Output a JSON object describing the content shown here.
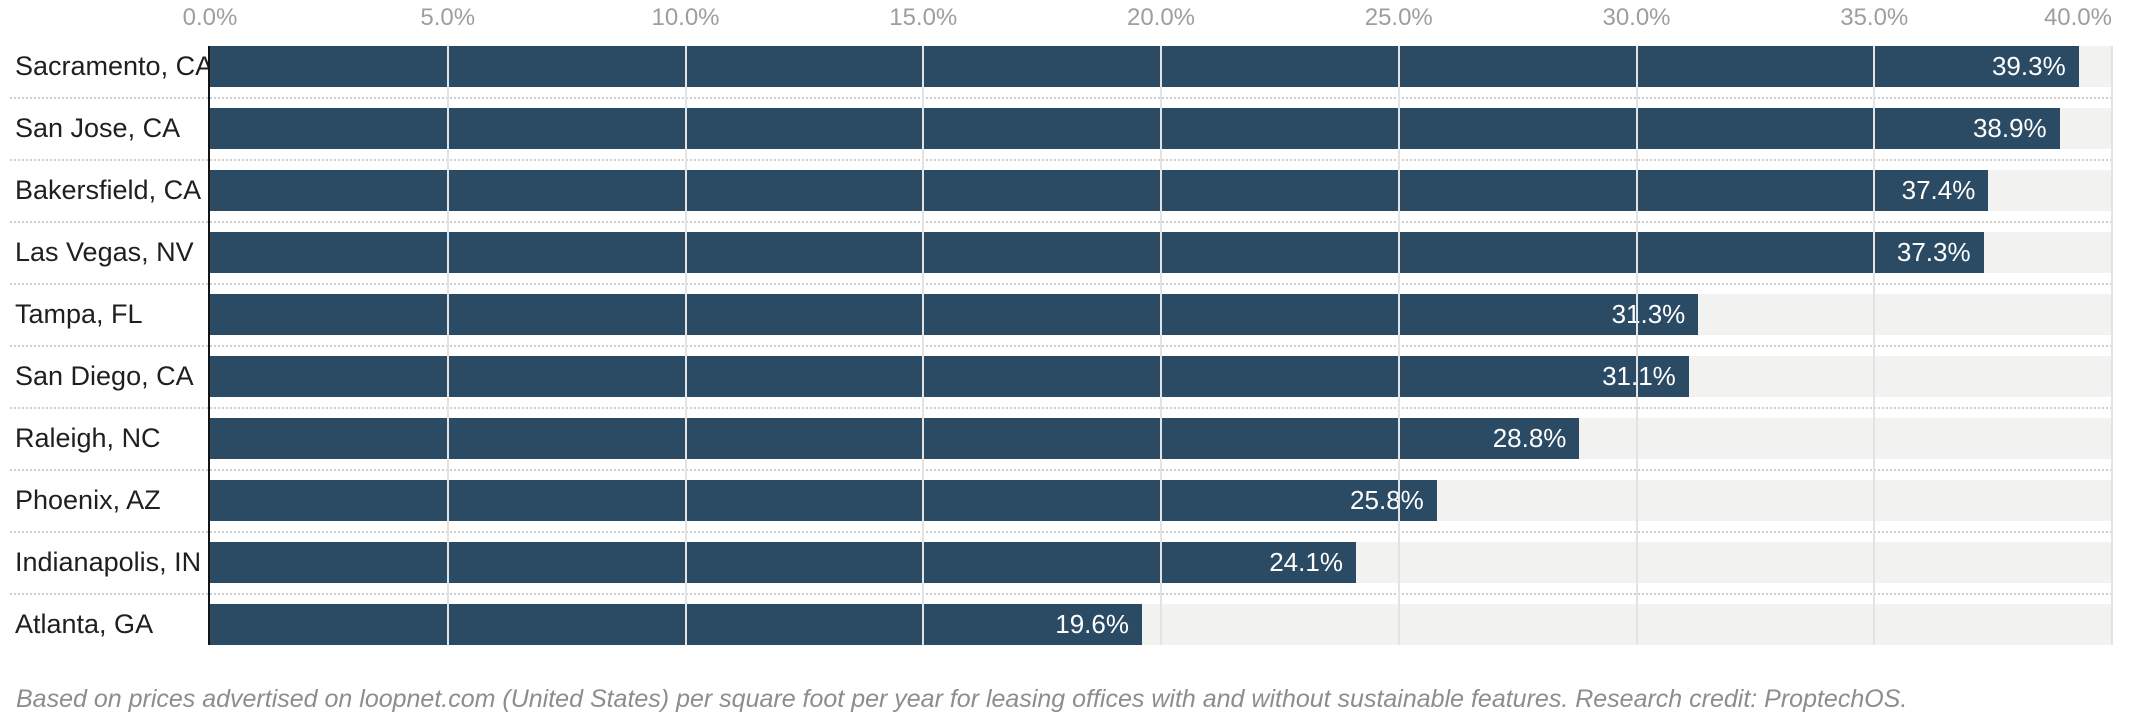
{
  "chart_data": {
    "type": "bar",
    "orientation": "horizontal",
    "title": "",
    "xlabel": "",
    "ylabel": "",
    "xlim": [
      0,
      40
    ],
    "grid": true,
    "x_ticks": [
      "0.0%",
      "5.0%",
      "10.0%",
      "15.0%",
      "20.0%",
      "25.0%",
      "30.0%",
      "35.0%",
      "40.0%"
    ],
    "categories": [
      "Sacramento, CA",
      "San Jose, CA",
      "Bakersfield, CA",
      "Las Vegas, NV",
      "Tampa, FL",
      "San Diego, CA",
      "Raleigh, NC",
      "Phoenix, AZ",
      "Indianapolis, IN",
      "Atlanta, GA"
    ],
    "values": [
      39.3,
      38.9,
      37.4,
      37.3,
      31.3,
      31.1,
      28.8,
      25.8,
      24.1,
      19.6
    ],
    "value_labels": [
      "39.3%",
      "38.9%",
      "37.4%",
      "37.3%",
      "31.3%",
      "31.1%",
      "28.8%",
      "25.8%",
      "24.1%",
      "19.6%"
    ],
    "footnote": "Based on prices advertised on loopnet.com (United States) per square foot per year for leasing offices with and without sustainable features. Research credit: ProptechOS."
  },
  "colors": {
    "background": "#ffffff",
    "bar": "#2b4b64",
    "track": "#f2f2f1",
    "gridline": "#e3e3e3",
    "axis_line": "#141414",
    "separator": "#cfcfcf",
    "tick_label": "#9e9e9e",
    "category_label": "#1f1f1f",
    "value_label": "#ffffff",
    "footnote_text": "#8d8d8d"
  }
}
